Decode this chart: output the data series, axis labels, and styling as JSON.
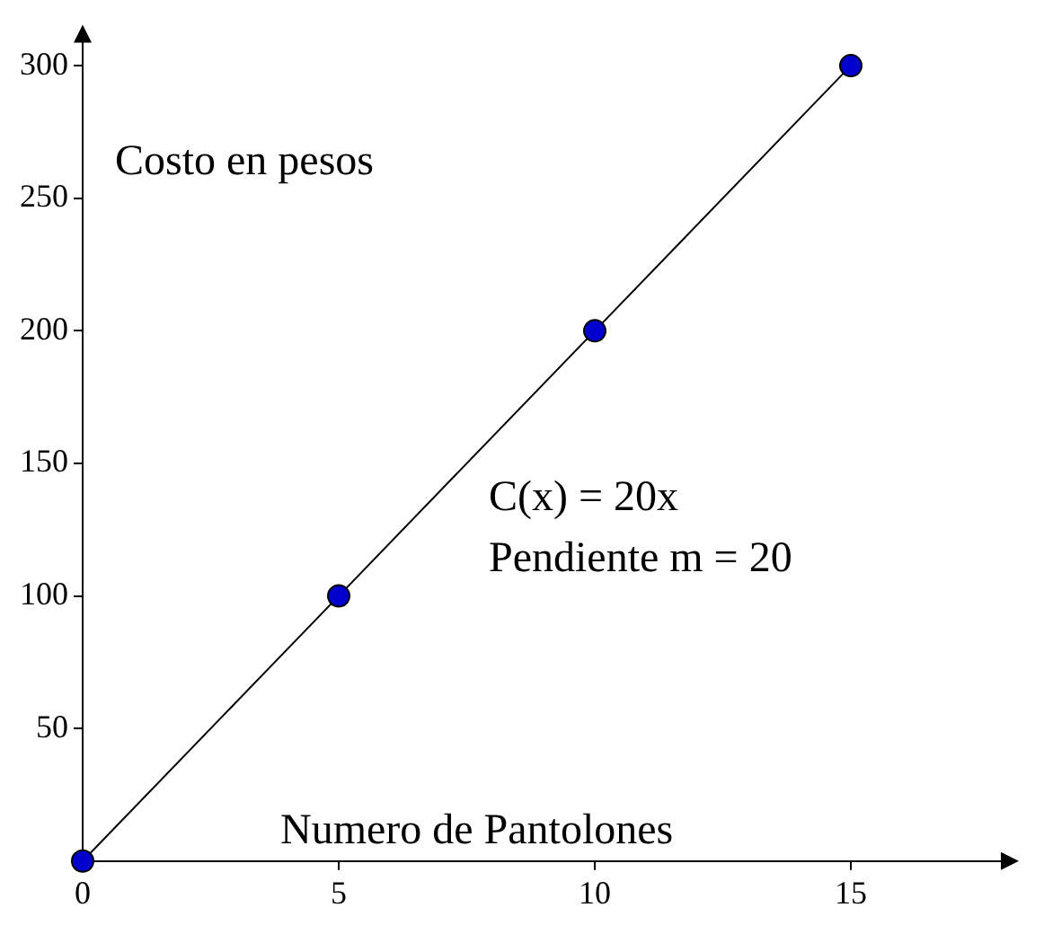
{
  "chart_data": {
    "type": "line",
    "xlabel": "Numero de Pantolones",
    "ylabel": "Costo en pesos",
    "annotations": [
      "C(x) = 20x",
      "Pendiente m = 20"
    ],
    "x": [
      0,
      5,
      10,
      15
    ],
    "series": [
      {
        "color": "#0000cc",
        "values": [
          0,
          100,
          200,
          300
        ]
      }
    ],
    "xlim": [
      0,
      18
    ],
    "ylim": [
      0,
      310
    ],
    "xticks": [
      0,
      5,
      10,
      15
    ],
    "yticks": [
      50,
      100,
      150,
      200,
      250,
      300
    ],
    "grid": false,
    "legend": false,
    "marker": "circle",
    "line_style": "solid"
  }
}
